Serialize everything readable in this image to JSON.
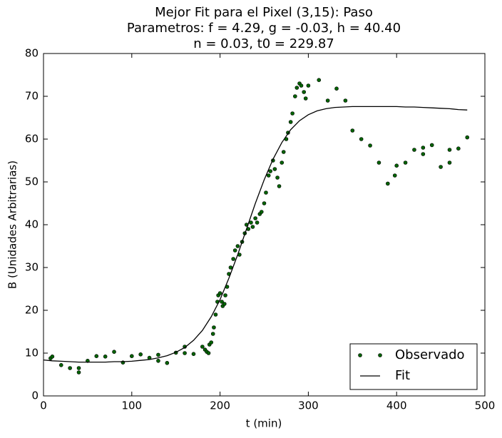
{
  "chart_data": {
    "type": "scatter",
    "title": [
      "Mejor Fit para el Pixel (3,15): Paso",
      "Parametros: f = 4.29, g = -0.03, h = 40.40",
      "n = 0.03, t0 = 229.87"
    ],
    "xlabel": "t (min)",
    "ylabel": "B (Unidades Arbitrarias)",
    "xlim": [
      0,
      500
    ],
    "xticks": [
      0,
      100,
      200,
      300,
      400,
      500
    ],
    "ylim": [
      0,
      80
    ],
    "yticks": [
      0,
      10,
      20,
      30,
      40,
      50,
      60,
      70,
      80
    ],
    "grid": false,
    "legend": "lower right",
    "series": [
      {
        "name": "Observado",
        "type": "scatter",
        "color": "#006400",
        "x": [
          8,
          10,
          20,
          30,
          40,
          40,
          50,
          60,
          70,
          80,
          90,
          100,
          110,
          120,
          130,
          130,
          140,
          150,
          160,
          160,
          170,
          180,
          183,
          185,
          187,
          188,
          190,
          192,
          193,
          195,
          197,
          198,
          200,
          202,
          203,
          205,
          206,
          208,
          210,
          212,
          215,
          217,
          220,
          222,
          225,
          228,
          230,
          232,
          235,
          237,
          240,
          242,
          245,
          247,
          250,
          252,
          255,
          257,
          260,
          262,
          265,
          267,
          270,
          272,
          275,
          277,
          280,
          282,
          285,
          287,
          290,
          292,
          295,
          297,
          300,
          312,
          322,
          332,
          342,
          350,
          360,
          370,
          380,
          390,
          398,
          400,
          410,
          420,
          430,
          430,
          440,
          450,
          460,
          460,
          470,
          480
        ],
        "values": [
          8.8,
          9.2,
          7.2,
          6.5,
          5.5,
          6.5,
          8.2,
          9.3,
          9.2,
          10.3,
          7.8,
          9.3,
          9.7,
          8.9,
          8.2,
          9.6,
          7.7,
          10.1,
          10,
          11.5,
          9.8,
          11.5,
          10.8,
          10.3,
          10,
          12,
          12.5,
          14.5,
          16,
          19,
          22,
          23.5,
          24,
          22,
          21,
          21.5,
          23.5,
          25.5,
          28.5,
          30,
          32,
          34,
          35,
          33,
          36,
          38,
          40,
          39,
          40.5,
          39.5,
          41.5,
          40.5,
          42.5,
          43,
          45,
          47.5,
          51.5,
          52.5,
          55,
          53,
          51,
          49,
          54.5,
          57,
          60,
          61.5,
          64,
          66,
          70,
          72,
          73,
          72.5,
          71,
          69.5,
          72.5,
          73.8,
          69,
          71.8,
          69,
          62,
          60,
          58.5,
          54.5,
          49.6,
          51.5,
          53.8,
          54.5,
          57.5,
          58,
          56.5,
          58.6,
          53.5,
          57.5,
          54.5,
          57.8,
          60.4
        ]
      },
      {
        "name": "Fit",
        "type": "line",
        "color": "#000000",
        "x": [
          0,
          10,
          20,
          30,
          40,
          50,
          60,
          70,
          80,
          90,
          100,
          110,
          120,
          130,
          140,
          150,
          160,
          170,
          180,
          190,
          200,
          210,
          220,
          230,
          240,
          250,
          260,
          270,
          280,
          290,
          300,
          310,
          320,
          330,
          340,
          350,
          360,
          370,
          380,
          390,
          400,
          410,
          420,
          430,
          440,
          450,
          460,
          470,
          480
        ],
        "values": [
          8.4,
          8.2,
          8.1,
          8.0,
          7.9,
          7.9,
          7.9,
          7.9,
          8.0,
          8.0,
          8.1,
          8.3,
          8.5,
          8.9,
          9.4,
          10.2,
          11.3,
          13.0,
          15.3,
          18.5,
          22.5,
          27.5,
          33,
          39,
          45,
          50.5,
          55.3,
          59.2,
          62.2,
          64.3,
          65.7,
          66.6,
          67.1,
          67.4,
          67.5,
          67.6,
          67.6,
          67.6,
          67.6,
          67.6,
          67.6,
          67.5,
          67.5,
          67.4,
          67.3,
          67.2,
          67.1,
          66.9,
          66.8
        ]
      }
    ]
  }
}
